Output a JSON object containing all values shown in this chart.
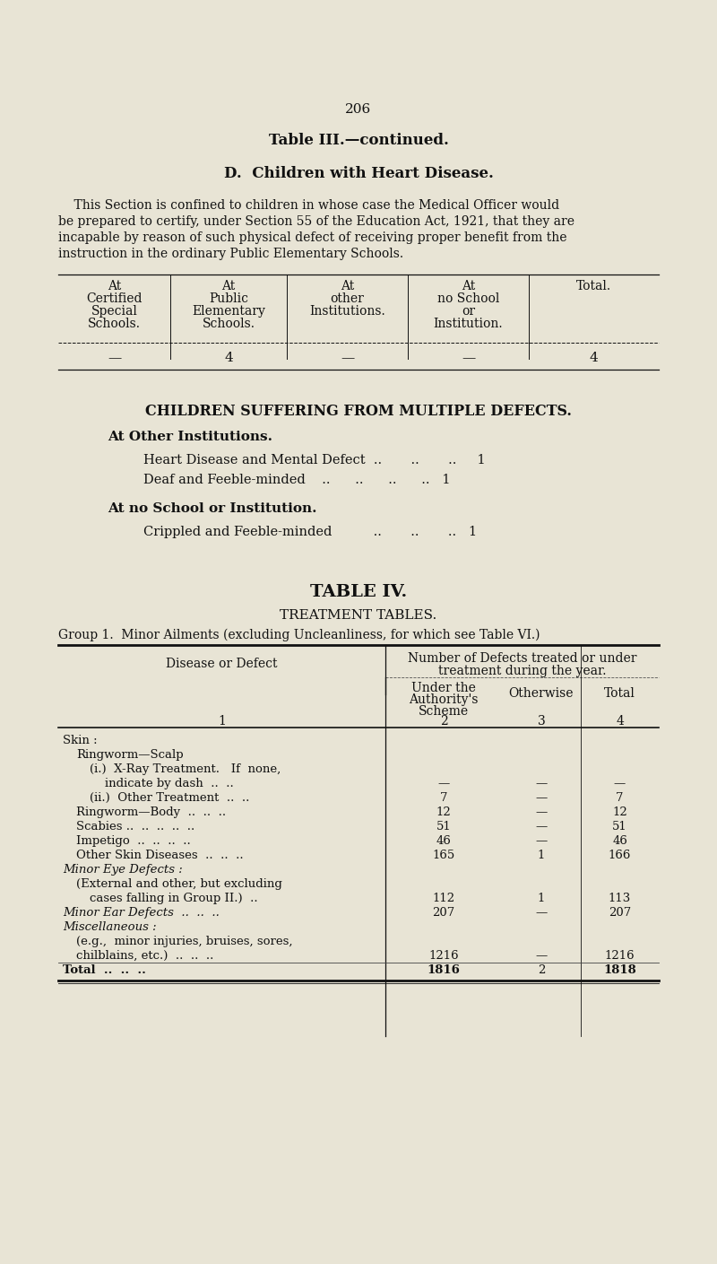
{
  "bg_color": "#e8e4d5",
  "text_color": "#1a1a1a",
  "page_number": "206",
  "title1": "Table III.—continued.",
  "title2": "D.  Children with Heart Disease.",
  "para1_lines": [
    "    This Section is confined to children in whose case the Medical Officer would",
    "be prepared to certify, under Section 55 of the Education Act, 1921, that they are",
    "incapable by reason of such physical defect of receiving proper benefit from the",
    "instruction in the ordinary Public Elementary Schools."
  ],
  "table1_headers": [
    "At\nCertified\nSpecial\nSchools.",
    "At\nPublic\nElementary\nSchools.",
    "At\nother\nInstitutions.",
    "At\nno School\nor\nInstitution.",
    "Total."
  ],
  "table1_data": [
    [
      "—",
      "4",
      "—",
      "—",
      "4"
    ]
  ],
  "multiple_defects_title": "CHILDREN SUFFERING FROM MULTIPLE DEFECTS.",
  "other_institutions_label": "At Other Institutions.",
  "other_institutions_items": [
    [
      "Heart Disease and Mental Defect  ..       ..       ..   1"
    ],
    [
      "Deaf and Feeble-minded    ..     ..     ..     ..   1"
    ]
  ],
  "no_school_label": "At no School or Institution.",
  "no_school_items": [
    [
      "Crippled and Feeble-minded         ..      ..      ..   1"
    ]
  ],
  "table4_title": "TABLE IV.",
  "table4_subtitle": "TREATMENT TABLES.",
  "group1_label": "Group 1.  Minor Ailments (excluding Uncleanliness, for which see Table VI.)",
  "t4_col_header_span": "Number of Defects treated or under\ntreatment during the year.",
  "t4_col1_header": "Disease or Defect",
  "t4_col1_num": "1",
  "t4_col2_header": "Under the\nAuthority's\nScheme",
  "t4_col2_num": "2",
  "t4_col3_header": "Otherwise",
  "t4_col3_num": "3",
  "t4_col4_header": "Total",
  "t4_col4_num": "4",
  "t4_rows": [
    {
      "label": "Skin :",
      "indent": 0,
      "italic": false,
      "col2": "",
      "col3": "",
      "col4": ""
    },
    {
      "label": "Ringworm—Scalp",
      "indent": 1,
      "italic": false,
      "col2": "",
      "col3": "",
      "col4": ""
    },
    {
      "label": "(i.)  X-Ray Treatment.   If  none,",
      "indent": 2,
      "italic": false,
      "col2": "",
      "col3": "",
      "col4": ""
    },
    {
      "label": "indicate by dash  ..  ..",
      "indent": 3,
      "italic": false,
      "col2": "—",
      "col3": "—",
      "col4": "—"
    },
    {
      "label": "(ii.)  Other Treatment  ..  ..",
      "indent": 2,
      "italic": false,
      "col2": "7",
      "col3": "—",
      "col4": "7"
    },
    {
      "label": "Ringworm—Body  ..  ..  ..",
      "indent": 1,
      "italic": false,
      "col2": "12",
      "col3": "—",
      "col4": "12"
    },
    {
      "label": "Scabies ..  ..  ..  ..  ..",
      "indent": 1,
      "italic": false,
      "col2": "51",
      "col3": "—",
      "col4": "51"
    },
    {
      "label": "Impetigo  ..  ..  ..  ..",
      "indent": 1,
      "italic": false,
      "col2": "46",
      "col3": "—",
      "col4": "46"
    },
    {
      "label": "Other Skin Diseases  ..  ..  ..",
      "indent": 1,
      "italic": false,
      "col2": "165",
      "col3": "1",
      "col4": "166"
    },
    {
      "label": "Minor Eye Defects :",
      "indent": 0,
      "italic": true,
      "col2": "",
      "col3": "",
      "col4": ""
    },
    {
      "label": "(External and other, but excluding",
      "indent": 1,
      "italic": false,
      "col2": "",
      "col3": "",
      "col4": ""
    },
    {
      "label": "cases falling in Group II.)  ..",
      "indent": 2,
      "italic": false,
      "col2": "112",
      "col3": "1",
      "col4": "113"
    },
    {
      "label": "Minor Ear Defects  ..  ..  ..",
      "indent": 0,
      "italic": true,
      "col2": "207",
      "col3": "—",
      "col4": "207"
    },
    {
      "label": "Miscellaneous :",
      "indent": 0,
      "italic": true,
      "col2": "",
      "col3": "",
      "col4": ""
    },
    {
      "label": "(e.g.,  minor injuries, bruises, sores,",
      "indent": 1,
      "italic": false,
      "col2": "",
      "col3": "",
      "col4": ""
    },
    {
      "label": "chilblains, etc.)  ..  ..  ..",
      "indent": 1,
      "italic": false,
      "col2": "1216",
      "col3": "—",
      "col4": "1216"
    },
    {
      "label": "Total  ..  ..  ..",
      "indent": 0,
      "italic": false,
      "bold": true,
      "col2": "1816",
      "col3": "2",
      "col4": "1818",
      "is_total": true
    }
  ]
}
